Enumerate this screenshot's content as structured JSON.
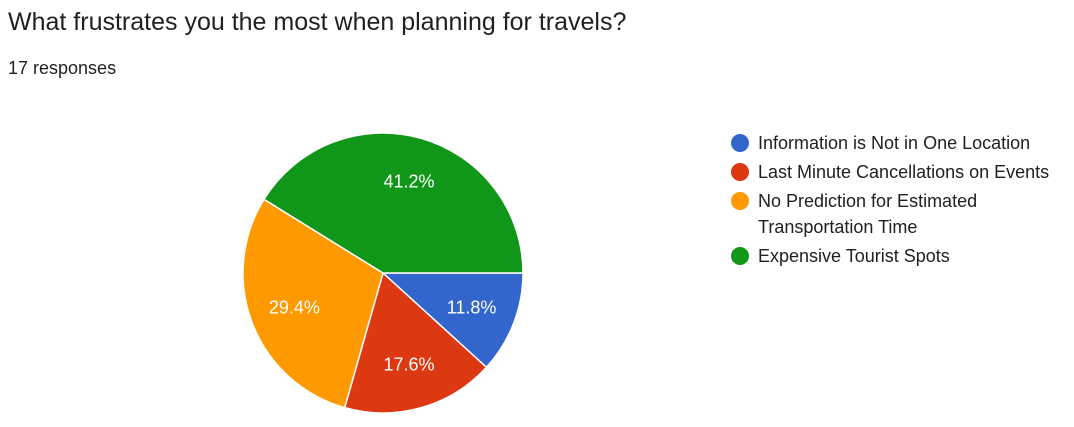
{
  "header": {
    "title": "What frustrates you the most when planning for travels?",
    "responses": "17 responses"
  },
  "chart_data": {
    "type": "pie",
    "title": "What frustrates you the most when planning for travels?",
    "total_responses": 17,
    "legend_position": "right",
    "slices": [
      {
        "label": "Information is Not in One Location",
        "value": 2,
        "percent_label": "11.8%",
        "color": "#3366cc"
      },
      {
        "label": "Last Minute Cancellations on Events",
        "value": 3,
        "percent_label": "17.6%",
        "color": "#dc3912"
      },
      {
        "label": "No Prediction for Estimated Transportation Time",
        "value": 5,
        "percent_label": "29.4%",
        "color": "#ff9900"
      },
      {
        "label": "Expensive Tourist Spots",
        "value": 7,
        "percent_label": "41.2%",
        "color": "#109618"
      }
    ]
  }
}
